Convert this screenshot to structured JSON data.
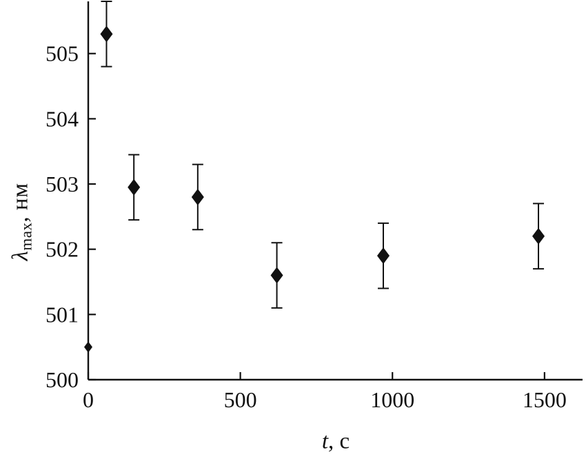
{
  "chart_data": {
    "type": "scatter",
    "title": "",
    "xlabel": "t, с",
    "ylabel": "λmax, нм",
    "xlabel_parts": {
      "symbol": "t",
      "unit": ", с"
    },
    "ylabel_parts": {
      "symbol": "λ",
      "subscript": "max",
      "unit": ", нм"
    },
    "xlim": [
      0,
      1625
    ],
    "ylim": [
      500,
      505.8
    ],
    "xticks": [
      0,
      500,
      1000,
      1500
    ],
    "yticks": [
      500,
      501,
      502,
      503,
      504,
      505
    ],
    "grid": false,
    "legend": "none",
    "marker": "diamond",
    "color": "#111111",
    "points": [
      {
        "t": 0,
        "y": 500.5,
        "err": 0,
        "small": true
      },
      {
        "t": 60,
        "y": 505.3,
        "err": 0.5
      },
      {
        "t": 150,
        "y": 502.95,
        "err": 0.5
      },
      {
        "t": 360,
        "y": 502.8,
        "err": 0.5
      },
      {
        "t": 620,
        "y": 501.6,
        "err": 0.5
      },
      {
        "t": 970,
        "y": 501.9,
        "err": 0.5
      },
      {
        "t": 1480,
        "y": 502.2,
        "err": 0.5
      }
    ]
  }
}
